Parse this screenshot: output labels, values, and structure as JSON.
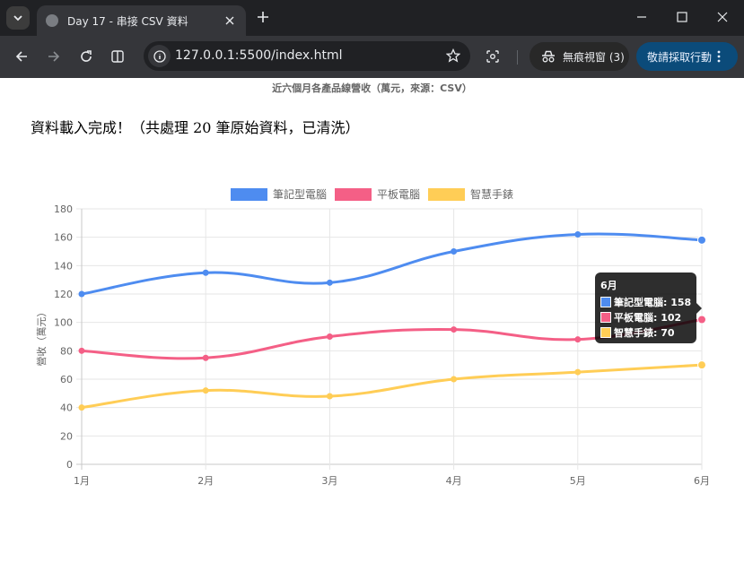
{
  "browser": {
    "tab_title": "Day 17 - 串接 CSV 資料",
    "url": "127.0.0.1:5500/index.html",
    "incognito_label": "無痕視窗 (3)",
    "action_label": "敬請採取行動",
    "icons": [
      "tab-search-icon",
      "favicon-icon",
      "close-icon",
      "plus-icon",
      "minimize-icon",
      "maximize-icon",
      "close-window-icon",
      "back-icon",
      "forward-icon",
      "reload-icon",
      "split-view-icon",
      "site-info-icon",
      "star-icon",
      "lens-icon",
      "incognito-icon",
      "more-icon"
    ]
  },
  "page": {
    "status": "資料載入完成！（共處理 20 筆原始資料，已清洗）"
  },
  "chart_data": {
    "type": "line",
    "title": "近六個月各產品線營收（萬元，來源：CSV）",
    "xlabel": "",
    "ylabel": "營收（萬元）",
    "categories": [
      "1月",
      "2月",
      "3月",
      "4月",
      "5月",
      "6月"
    ],
    "ylim": [
      0,
      180
    ],
    "yticks": [
      "0",
      "20",
      "40",
      "60",
      "80",
      "100",
      "120",
      "140",
      "160",
      "180"
    ],
    "grid": true,
    "legend_position": "top",
    "series": [
      {
        "name": "筆記型電腦",
        "color": "#4e8cf0",
        "values": [
          120,
          135,
          128,
          150,
          162,
          158
        ]
      },
      {
        "name": "平板電腦",
        "color": "#f45f86",
        "values": [
          80,
          75,
          90,
          95,
          88,
          102
        ]
      },
      {
        "name": "智慧手錶",
        "color": "#ffcd56",
        "values": [
          40,
          52,
          48,
          60,
          65,
          70
        ]
      }
    ],
    "tooltip": {
      "title": "6月",
      "rows": [
        "筆記型電腦: 158",
        "平板電腦: 102",
        "智慧手錶: 70"
      ]
    }
  }
}
